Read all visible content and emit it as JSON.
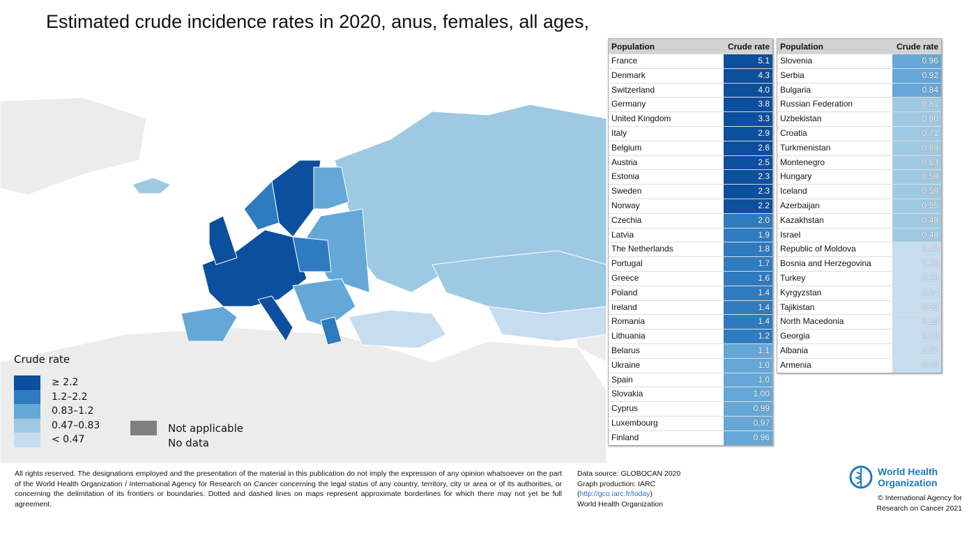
{
  "title": "Estimated crude incidence rates in 2020, anus, females, all ages,",
  "colors": {
    "c1": "#0c4f9e",
    "c2": "#2f7bbf",
    "c3": "#65a8d8",
    "c4": "#9ec9e2",
    "c5": "#c6dcef",
    "not_applicable": "#7f7f7f",
    "no_data": "#ececec"
  },
  "table_header": {
    "population": "Population",
    "rate": "Crude rate"
  },
  "table_left": [
    [
      "France",
      "5.1"
    ],
    [
      "Denmark",
      "4.3"
    ],
    [
      "Switzerland",
      "4.0"
    ],
    [
      "Germany",
      "3.8"
    ],
    [
      "United Kingdom",
      "3.3"
    ],
    [
      "Italy",
      "2.9"
    ],
    [
      "Belgium",
      "2.6"
    ],
    [
      "Austria",
      "2.5"
    ],
    [
      "Estonia",
      "2.3"
    ],
    [
      "Sweden",
      "2.3"
    ],
    [
      "Norway",
      "2.2"
    ],
    [
      "Czechia",
      "2.0"
    ],
    [
      "Latvia",
      "1.9"
    ],
    [
      "The Netherlands",
      "1.8"
    ],
    [
      "Portugal",
      "1.7"
    ],
    [
      "Greece",
      "1.6"
    ],
    [
      "Poland",
      "1.4"
    ],
    [
      "Ireland",
      "1.4"
    ],
    [
      "Romania",
      "1.4"
    ],
    [
      "Lithuania",
      "1.2"
    ],
    [
      "Belarus",
      "1.1"
    ],
    [
      "Ukraine",
      "1.0"
    ],
    [
      "Spain",
      "1.0"
    ],
    [
      "Slovakia",
      "1.00"
    ],
    [
      "Cyprus",
      "0.99"
    ],
    [
      "Luxembourg",
      "0.97"
    ],
    [
      "Finland",
      "0.96"
    ]
  ],
  "table_right": [
    [
      "Slovenia",
      "0.96"
    ],
    [
      "Serbia",
      "0.92"
    ],
    [
      "Bulgaria",
      "0.84"
    ],
    [
      "Russian Federation",
      "0.81"
    ],
    [
      "Uzbekistan",
      "0.80"
    ],
    [
      "Croatia",
      "0.71"
    ],
    [
      "Turkmenistan",
      "0.69"
    ],
    [
      "Montenegro",
      "0.63"
    ],
    [
      "Hungary",
      "0.59"
    ],
    [
      "Iceland",
      "0.59"
    ],
    [
      "Azerbaijan",
      "0.55"
    ],
    [
      "Kazakhstan",
      "0.49"
    ],
    [
      "Israel",
      "0.48"
    ],
    [
      "Republic of Moldova",
      "0.43"
    ],
    [
      "Bosnia and Herzegovina",
      "0.36"
    ],
    [
      "Turkey",
      "0.29"
    ],
    [
      "Kyrgyzstan",
      "0.24"
    ],
    [
      "Tajikistan",
      "0.23"
    ],
    [
      "North Macedonia",
      "0.19"
    ],
    [
      "Georgia",
      "0.19"
    ],
    [
      "Albania",
      "0.07"
    ],
    [
      "Armenia",
      "0.06"
    ]
  ],
  "legend": {
    "title": "Crude rate",
    "items": [
      "≥ 2.2",
      "1.2–2.2",
      "0.83–1.2",
      "0.47–0.83",
      "< 0.47"
    ],
    "not_applicable": "Not applicable",
    "no_data": "No data"
  },
  "footer": {
    "disclaimer": "All rights reserved. The designations employed and the presentation of the material in this publication do not imply the expression of any opinion whatsoever on the part of the World Health Organization / International Agency for Research on Cancer concerning the legal status of any country, territory, city or area or of its authorities, or concerning the delimitation of its frontiers or boundaries. Dotted and dashed lines on maps represent approximate borderlines for which there may not yet be full agreement.",
    "source": "Data source: GLOBOCAN 2020",
    "production": "Graph production: IARC",
    "link": "http://gco.iarc.fr/today",
    "org": "World Health Organization",
    "who_logo": "World Health Organization",
    "copyright1": "© International Agency for",
    "copyright2": "Research on Cancer 2021"
  }
}
